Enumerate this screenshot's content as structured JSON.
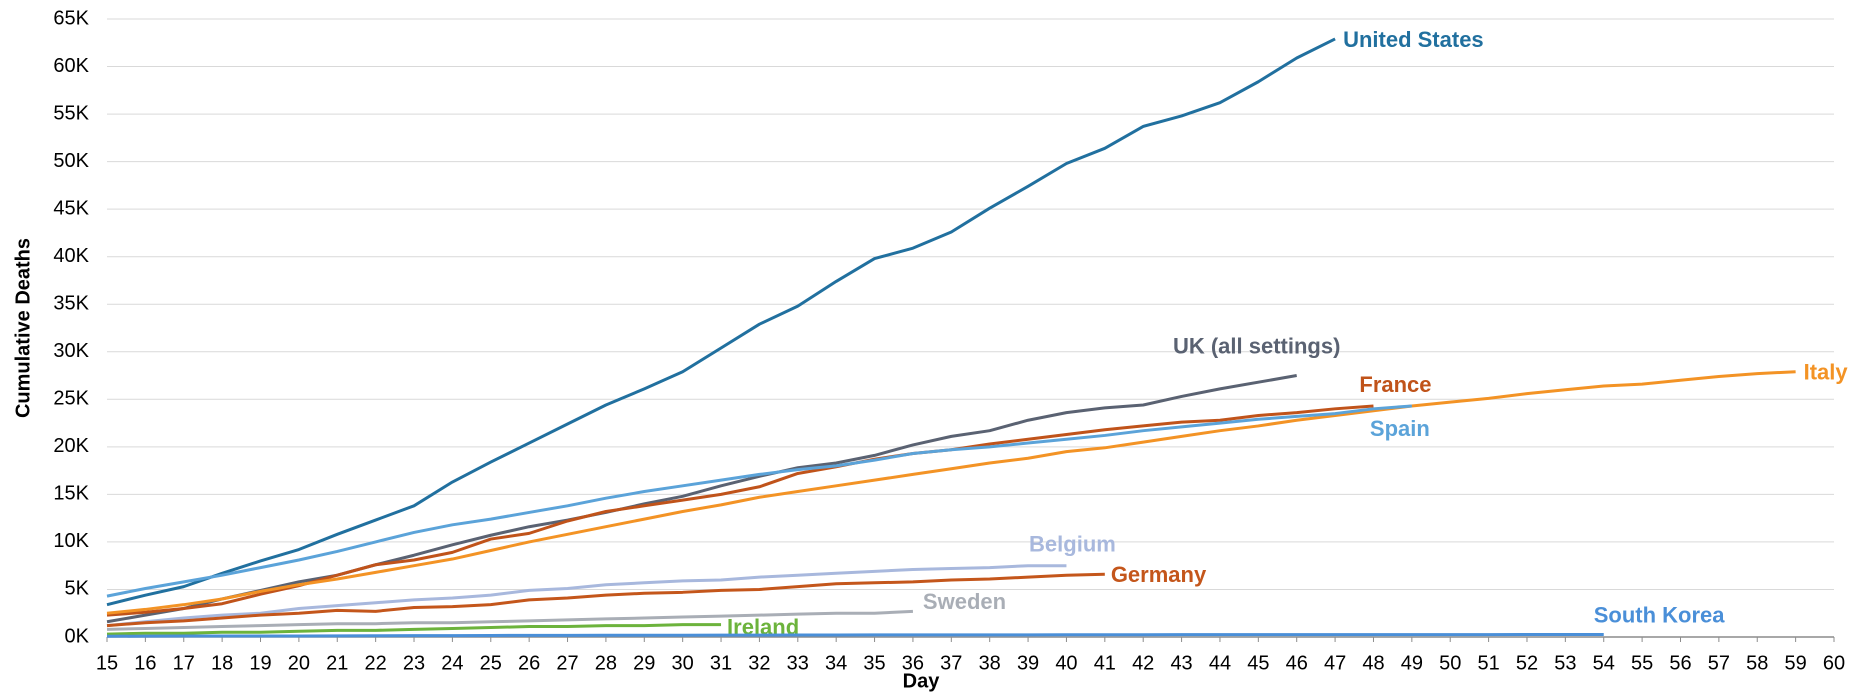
{
  "chart_data": {
    "type": "line",
    "y_label": "Cumulative Deaths",
    "x_label": "Day",
    "x": [
      15,
      16,
      17,
      18,
      19,
      20,
      21,
      22,
      23,
      24,
      25,
      26,
      27,
      28,
      29,
      30,
      31,
      32,
      33,
      34,
      35,
      36,
      37,
      38,
      39,
      40,
      41,
      42,
      43,
      44,
      45,
      46,
      47,
      48,
      49,
      50,
      51,
      52,
      53,
      54,
      55,
      56,
      57,
      58,
      59,
      60
    ],
    "xlim": [
      15,
      60
    ],
    "xticks": [
      15,
      16,
      17,
      18,
      19,
      20,
      21,
      22,
      23,
      24,
      25,
      26,
      27,
      28,
      29,
      30,
      31,
      32,
      33,
      34,
      35,
      36,
      37,
      38,
      39,
      40,
      41,
      42,
      43,
      44,
      45,
      46,
      47,
      48,
      49,
      50,
      51,
      52,
      53,
      54,
      55,
      56,
      57,
      58,
      59,
      60
    ],
    "ylim": [
      0,
      65000
    ],
    "yticks": [
      {
        "value": 0,
        "label": "0K"
      },
      {
        "value": 5000,
        "label": "5K"
      },
      {
        "value": 10000,
        "label": "10K"
      },
      {
        "value": 15000,
        "label": "15K"
      },
      {
        "value": 20000,
        "label": "20K"
      },
      {
        "value": 25000,
        "label": "25K"
      },
      {
        "value": 30000,
        "label": "30K"
      },
      {
        "value": 35000,
        "label": "35K"
      },
      {
        "value": 40000,
        "label": "40K"
      },
      {
        "value": 45000,
        "label": "45K"
      },
      {
        "value": 50000,
        "label": "50K"
      },
      {
        "value": 55000,
        "label": "55K"
      },
      {
        "value": 60000,
        "label": "60K"
      },
      {
        "value": 65000,
        "label": "65K"
      }
    ],
    "grid": true,
    "series": [
      {
        "name": "United States",
        "color": "#21709f",
        "values": [
          3400,
          4400,
          5300,
          6700,
          8000,
          9200,
          10800,
          12300,
          13800,
          16300,
          18400,
          20400,
          22400,
          24400,
          26100,
          27900,
          30400,
          32900,
          34800,
          37400,
          39800,
          40900,
          42600,
          45100,
          47400,
          49800,
          51400,
          53700,
          54800,
          56200,
          58400,
          60900,
          62900,
          null,
          null,
          null,
          null,
          null,
          null,
          null,
          null,
          null,
          null,
          null,
          null,
          null
        ]
      },
      {
        "name": "UK (all settings)",
        "color": "#5a6272",
        "values": [
          1600,
          2300,
          3000,
          4000,
          4900,
          5800,
          6500,
          7600,
          8600,
          9700,
          10700,
          11600,
          12300,
          13100,
          14000,
          14800,
          15900,
          16900,
          17800,
          18300,
          19100,
          20200,
          21100,
          21700,
          22800,
          23600,
          24100,
          24400,
          25300,
          26100,
          26800,
          27500,
          null,
          null,
          null,
          null,
          null,
          null,
          null,
          null,
          null,
          null,
          null,
          null,
          null,
          null
        ]
      },
      {
        "name": "France",
        "color": "#c0531a",
        "values": [
          2300,
          2600,
          3000,
          3500,
          4500,
          5400,
          6500,
          7600,
          8100,
          8900,
          10300,
          10900,
          12200,
          13200,
          13800,
          14400,
          15000,
          15800,
          17200,
          17900,
          18700,
          19300,
          19700,
          20300,
          20800,
          21300,
          21800,
          22200,
          22600,
          22800,
          23300,
          23600,
          24000,
          24300,
          null,
          null,
          null,
          null,
          null,
          null,
          null,
          null,
          null,
          null,
          null,
          null
        ]
      },
      {
        "name": "Italy",
        "color": "#f39325",
        "values": [
          2500,
          2900,
          3400,
          4000,
          4800,
          5500,
          6100,
          6800,
          7500,
          8200,
          9100,
          10000,
          10800,
          11600,
          12400,
          13200,
          13900,
          14700,
          15300,
          15900,
          16500,
          17100,
          17700,
          18300,
          18800,
          19500,
          19900,
          20500,
          21100,
          21700,
          22200,
          22800,
          23300,
          23800,
          24300,
          24700,
          25100,
          25600,
          26000,
          26400,
          26600,
          27000,
          27400,
          27700,
          27900,
          null
        ]
      },
      {
        "name": "Spain",
        "color": "#5ba3d9",
        "values": [
          4300,
          5100,
          5800,
          6500,
          7300,
          8100,
          9000,
          10000,
          11000,
          11800,
          12400,
          13100,
          13800,
          14600,
          15300,
          15900,
          16500,
          17100,
          17600,
          18000,
          18600,
          19300,
          19700,
          20000,
          20400,
          20800,
          21200,
          21700,
          22100,
          22500,
          22900,
          23200,
          23500,
          24000,
          24300,
          null,
          null,
          null,
          null,
          null,
          null,
          null,
          null,
          null,
          null,
          null
        ]
      },
      {
        "name": "Belgium",
        "color": "#a8b8dd",
        "values": [
          1200,
          1600,
          2000,
          2300,
          2500,
          3000,
          3300,
          3600,
          3900,
          4100,
          4400,
          4900,
          5100,
          5500,
          5700,
          5900,
          6000,
          6300,
          6500,
          6700,
          6900,
          7100,
          7200,
          7300,
          7500,
          7500,
          null,
          null,
          null,
          null,
          null,
          null,
          null,
          null,
          null,
          null,
          null,
          null,
          null,
          null,
          null,
          null,
          null,
          null,
          null,
          null
        ]
      },
      {
        "name": "Germany",
        "color": "#c4561b",
        "values": [
          1200,
          1500,
          1700,
          2000,
          2300,
          2500,
          2800,
          2700,
          3100,
          3200,
          3400,
          3900,
          4100,
          4400,
          4600,
          4700,
          4900,
          5000,
          5300,
          5600,
          5700,
          5800,
          6000,
          6100,
          6300,
          6500,
          6600,
          null,
          null,
          null,
          null,
          null,
          null,
          null,
          null,
          null,
          null,
          null,
          null,
          null,
          null,
          null,
          null,
          null,
          null,
          null
        ]
      },
      {
        "name": "Sweden",
        "color": "#a9aeb6",
        "values": [
          800,
          900,
          1000,
          1100,
          1200,
          1300,
          1400,
          1400,
          1500,
          1500,
          1600,
          1700,
          1800,
          1900,
          2000,
          2100,
          2200,
          2300,
          2400,
          2500,
          2500,
          2700,
          null,
          null,
          null,
          null,
          null,
          null,
          null,
          null,
          null,
          null,
          null,
          null,
          null,
          null,
          null,
          null,
          null,
          null,
          null,
          null,
          null,
          null,
          null,
          null
        ]
      },
      {
        "name": "Ireland",
        "color": "#6cb33c",
        "values": [
          300,
          400,
          400,
          500,
          500,
          600,
          700,
          700,
          800,
          900,
          1000,
          1100,
          1100,
          1200,
          1200,
          1300,
          1300,
          null,
          null,
          null,
          null,
          null,
          null,
          null,
          null,
          null,
          null,
          null,
          null,
          null,
          null,
          null,
          null,
          null,
          null,
          null,
          null,
          null,
          null,
          null,
          null,
          null,
          null,
          null,
          null,
          null
        ]
      },
      {
        "name": "South Korea",
        "color": "#4a8fd8",
        "values": [
          80,
          90,
          100,
          100,
          110,
          110,
          120,
          130,
          140,
          150,
          160,
          170,
          170,
          180,
          190,
          190,
          200,
          200,
          210,
          210,
          220,
          220,
          230,
          230,
          230,
          240,
          240,
          240,
          250,
          250,
          250,
          250,
          250,
          250,
          250,
          250,
          250,
          260,
          260,
          260,
          null,
          null,
          null,
          null,
          null,
          null
        ]
      }
    ]
  }
}
